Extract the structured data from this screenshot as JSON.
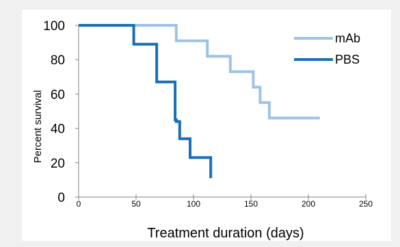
{
  "chart_data": {
    "type": "line",
    "step": true,
    "xlabel": "Treatment duration (days)",
    "ylabel": "Percent survival",
    "xlim": [
      0,
      250
    ],
    "ylim": [
      0,
      100
    ],
    "x_ticks": [
      "0",
      "50",
      "100",
      "150",
      "200",
      "250"
    ],
    "y_ticks": [
      "0",
      "20",
      "40",
      "60",
      "80",
      "100"
    ],
    "grid": false,
    "legend": "top-right",
    "series": [
      {
        "name": "mAb",
        "color": "#9dc3e6",
        "x": [
          0,
          85,
          85,
          112,
          112,
          132,
          132,
          152,
          152,
          158,
          158,
          166,
          166,
          210
        ],
        "y": [
          100,
          100,
          91,
          91,
          82,
          82,
          73,
          73,
          64,
          64,
          55,
          55,
          46,
          46
        ]
      },
      {
        "name": "PBS",
        "color": "#1a6fb9",
        "x": [
          0,
          48,
          48,
          68,
          68,
          84,
          84,
          85,
          85,
          88,
          88,
          97,
          97,
          115,
          115
        ],
        "y": [
          100,
          100,
          89,
          89,
          67,
          67,
          45,
          45,
          44,
          44,
          34,
          34,
          23,
          23,
          11
        ]
      }
    ]
  }
}
